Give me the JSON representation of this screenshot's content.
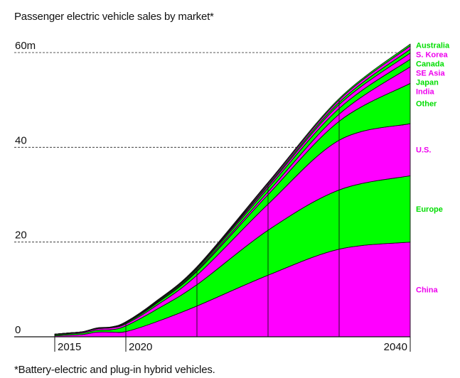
{
  "colors": {
    "magenta": "#ff00ff",
    "green": "#00ff00",
    "legend_magenta": "#ee00ee",
    "legend_green": "#00dd00",
    "outline": "#111111"
  },
  "chart_data": {
    "type": "area",
    "stacked": true,
    "title": "Passenger electric vehicle sales by market*",
    "footnote": "*Battery-electric and plug-in hybrid vehicles.",
    "xlabel": "",
    "ylabel": "",
    "x_range": [
      2015,
      2040
    ],
    "ylim": [
      0,
      60
    ],
    "y_ticks": [
      {
        "value": 0,
        "label": "0"
      },
      {
        "value": 20,
        "label": "20"
      },
      {
        "value": 40,
        "label": "40"
      },
      {
        "value": 60,
        "label": "60m"
      }
    ],
    "x_ticks": [
      {
        "value": 2015,
        "label": "2015"
      },
      {
        "value": 2020,
        "label": "2020"
      },
      {
        "value": 2040,
        "label": "2040"
      }
    ],
    "grid": "dashed horizontal lines at 20, 40, 60",
    "legend_placement": "right, labels aligned with bands",
    "x": [
      2015,
      2016,
      2017,
      2018,
      2019,
      2020,
      2022,
      2025,
      2030,
      2035,
      2040
    ],
    "series": [
      {
        "name": "China",
        "color": "magenta",
        "values": [
          0.2,
          0.35,
          0.5,
          1.0,
          1.0,
          1.1,
          3.0,
          6.5,
          13.0,
          18.5,
          20.0
        ]
      },
      {
        "name": "Europe",
        "color": "green",
        "values": [
          0.2,
          0.25,
          0.3,
          0.4,
          0.5,
          1.2,
          2.5,
          4.5,
          9.5,
          12.5,
          14.0
        ]
      },
      {
        "name": "U.S.",
        "color": "magenta",
        "values": [
          0.1,
          0.15,
          0.2,
          0.3,
          0.4,
          0.4,
          0.8,
          2.0,
          5.5,
          10.5,
          11.0
        ]
      },
      {
        "name": "Other",
        "color": "green",
        "values": [
          0.05,
          0.05,
          0.05,
          0.1,
          0.1,
          0.2,
          0.4,
          0.8,
          2.0,
          4.0,
          8.5
        ]
      },
      {
        "name": "India",
        "color": "magenta",
        "values": [
          0.0,
          0.0,
          0.0,
          0.0,
          0.0,
          0.05,
          0.1,
          0.2,
          0.6,
          1.5,
          3.5
        ]
      },
      {
        "name": "Japan",
        "color": "green",
        "values": [
          0.0,
          0.02,
          0.03,
          0.04,
          0.05,
          0.1,
          0.2,
          0.3,
          0.8,
          1.2,
          1.6
        ]
      },
      {
        "name": "SE Asia",
        "color": "magenta",
        "values": [
          0.0,
          0.0,
          0.0,
          0.0,
          0.0,
          0.03,
          0.1,
          0.2,
          0.4,
          0.8,
          1.3
        ]
      },
      {
        "name": "Canada",
        "color": "green",
        "values": [
          0.0,
          0.0,
          0.0,
          0.02,
          0.02,
          0.03,
          0.05,
          0.1,
          0.3,
          0.5,
          0.8
        ]
      },
      {
        "name": "S. Korea",
        "color": "magenta",
        "values": [
          0.0,
          0.0,
          0.01,
          0.02,
          0.02,
          0.03,
          0.05,
          0.1,
          0.3,
          0.5,
          0.7
        ]
      },
      {
        "name": "Australia",
        "color": "green",
        "values": [
          0.0,
          0.0,
          0.0,
          0.01,
          0.01,
          0.02,
          0.04,
          0.08,
          0.2,
          0.3,
          0.4
        ]
      }
    ]
  }
}
